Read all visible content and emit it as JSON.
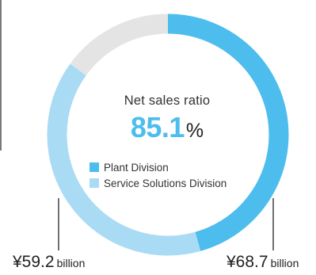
{
  "chart_data": {
    "type": "donut",
    "title": "Net sales ratio",
    "highlight": {
      "value": "85.1",
      "unit": "%"
    },
    "series": [
      {
        "name": "Plant Division",
        "value": 68.7,
        "amount_label": "¥68.7",
        "unit_label": "billion",
        "color": "#4dbdee"
      },
      {
        "name": "Service Solutions Division",
        "value": 59.2,
        "amount_label": "¥59.2",
        "unit_label": "billion",
        "color": "#a9dbf5"
      },
      {
        "name": "",
        "value": 22.6,
        "color": "#e4e4e4"
      }
    ]
  }
}
